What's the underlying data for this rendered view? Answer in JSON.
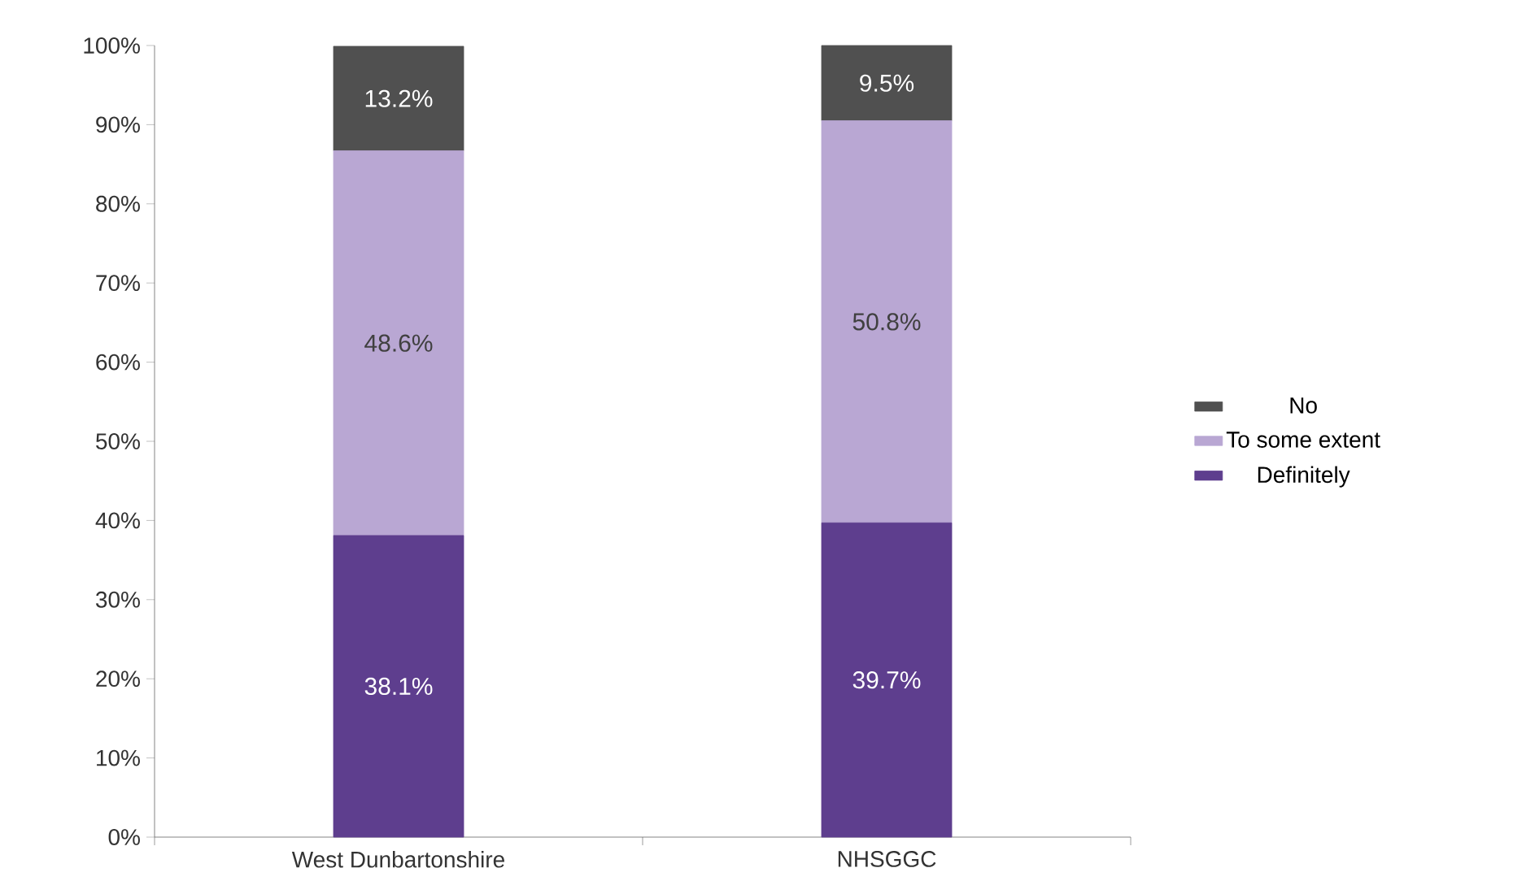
{
  "chart_data": {
    "type": "bar",
    "stacked": true,
    "categories": [
      "West Dunbartonshire",
      "NHSGGC"
    ],
    "series": [
      {
        "name": "Definitely",
        "color": "#5e3e8e",
        "values": [
          38.1,
          39.7
        ],
        "value_labels": [
          "38.1%",
          "39.7%"
        ]
      },
      {
        "name": "To some extent",
        "color": "#b9a7d3",
        "values": [
          48.6,
          50.8
        ],
        "value_labels": [
          "48.6%",
          "50.8%"
        ]
      },
      {
        "name": "No",
        "color": "#505050",
        "values": [
          13.2,
          9.5
        ],
        "value_labels": [
          "13.2%",
          "9.5%"
        ]
      }
    ],
    "ylim": [
      0,
      100
    ],
    "yticks": [
      {
        "value": 0,
        "label": "0%"
      },
      {
        "value": 10,
        "label": "10%"
      },
      {
        "value": 20,
        "label": "20%"
      },
      {
        "value": 30,
        "label": "30%"
      },
      {
        "value": 40,
        "label": "40%"
      },
      {
        "value": 50,
        "label": "50%"
      },
      {
        "value": 60,
        "label": "60%"
      },
      {
        "value": 70,
        "label": "70%"
      },
      {
        "value": 80,
        "label": "80%"
      },
      {
        "value": 90,
        "label": "90%"
      },
      {
        "value": 100,
        "label": "100%"
      }
    ],
    "legend": "right"
  }
}
